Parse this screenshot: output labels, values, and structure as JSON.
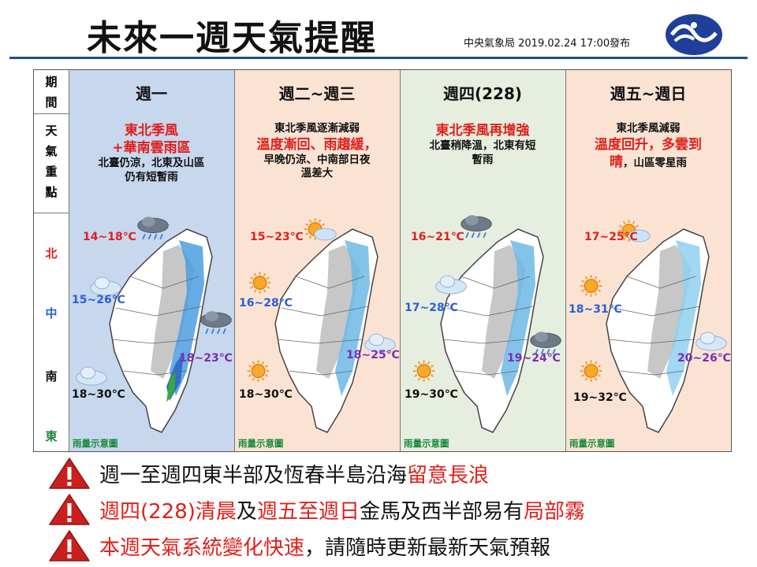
{
  "header": {
    "title": "未來一週天氣提醒",
    "issuer": "中央氣象局 2019.02.24 17:00發布"
  },
  "table": {
    "row_labels": {
      "period": [
        "期",
        "間"
      ],
      "key_points": [
        "天",
        "氣",
        "重",
        "點"
      ],
      "regions": [
        "北",
        "中",
        "南",
        "東"
      ]
    },
    "columns": [
      {
        "period": "週一",
        "bg": "#c7d7ee",
        "key_lines": [
          {
            "text": "東北季風",
            "style": "big red"
          },
          {
            "text": "+華南雲雨區",
            "style": "big red"
          },
          {
            "text": "北臺仍涼，北東及山區",
            "style": "small"
          },
          {
            "text": "仍有短暫雨",
            "style": "small"
          }
        ],
        "temps": {
          "north": "14~18℃",
          "central": "15~26℃",
          "east": "18~23℃",
          "south": "18~30℃"
        },
        "rain_label": "雨量示意圖"
      },
      {
        "period": "週二~週三",
        "bg": "#fbe3d4",
        "key_lines": [
          {
            "text": "東北季風逐漸減弱",
            "style": "small"
          },
          {
            "text": "溫度漸回、雨趨緩，",
            "style": "big red"
          },
          {
            "text": "早晚仍涼、中南部日夜",
            "style": "small"
          },
          {
            "text": "溫差大",
            "style": "small"
          }
        ],
        "temps": {
          "north": "15~23℃",
          "central": "16~28℃",
          "east": "18~25℃",
          "south": "18~30℃"
        },
        "rain_label": "雨量示意圖"
      },
      {
        "period": "週四(228)",
        "bg": "#e6eedf",
        "key_lines": [
          {
            "text": "東北季風再增強",
            "style": "big red"
          },
          {
            "text": "北臺稍降溫，北東有短",
            "style": "small"
          },
          {
            "text": "暫雨",
            "style": "small"
          }
        ],
        "temps": {
          "north": "16~21℃",
          "central": "17~28℃",
          "east": "19~24℃",
          "south": "19~30℃"
        },
        "rain_label": "雨量示意圖"
      },
      {
        "period": "週五~週日",
        "bg": "#fbe3d4",
        "key_lines": [
          {
            "text": "東北季風減弱",
            "style": "small"
          },
          {
            "text": "溫度回升，多雲到",
            "style": "big red"
          },
          {
            "text": "晴，山區零星雨",
            "style": "mixed"
          }
        ],
        "temps": {
          "north": "17~25℃",
          "central": "18~31℃",
          "east": "20~26℃",
          "south": "19~32℃"
        },
        "rain_label": "雨量示意圖"
      }
    ]
  },
  "notes": [
    {
      "parts": [
        {
          "t": "週一至週四東半部及恆春半島沿海",
          "c": "#111"
        },
        {
          "t": "留意長浪",
          "c": "#e0201b"
        }
      ]
    },
    {
      "parts": [
        {
          "t": "週四(228)清晨",
          "c": "#e0201b"
        },
        {
          "t": "及",
          "c": "#111"
        },
        {
          "t": "週五至週日",
          "c": "#e0201b"
        },
        {
          "t": "金馬及西半部易有",
          "c": "#111"
        },
        {
          "t": "局部霧",
          "c": "#e0201b"
        }
      ]
    },
    {
      "parts": [
        {
          "t": "本週天氣系統變化快速",
          "c": "#e0201b"
        },
        {
          "t": "，請隨時更新最新天氣預報",
          "c": "#111"
        }
      ]
    }
  ],
  "icons": [
    "cwb-logo-icon",
    "rain-cloud-icon",
    "cloud-icon",
    "sun-cloud-icon",
    "sun-icon",
    "warning-icon"
  ]
}
